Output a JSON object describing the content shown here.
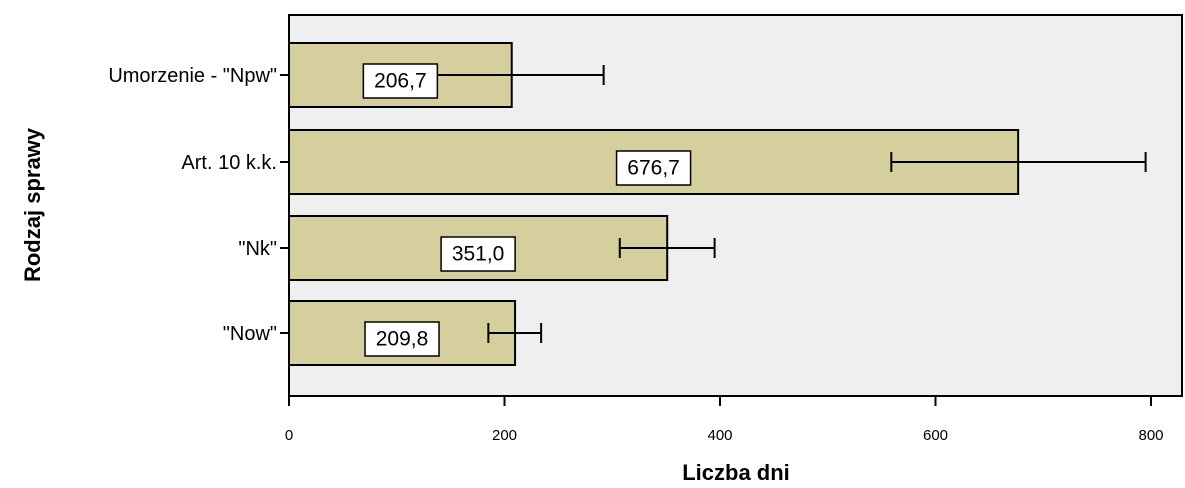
{
  "chart_data": {
    "type": "bar",
    "orientation": "horizontal",
    "categories": [
      "Umorzenie - \"Npw\"",
      "Art. 10 k.k.",
      "\"Nk\"",
      "\"Now\""
    ],
    "values": [
      206.7,
      676.7,
      351.0,
      209.8
    ],
    "value_labels": [
      "206,7",
      "676,7",
      "351,0",
      "209,8"
    ],
    "error_bars": [
      [
        121,
        292
      ],
      [
        559,
        795
      ],
      [
        307,
        395
      ],
      [
        185,
        234
      ]
    ],
    "xlabel": "Liczba dni",
    "ylabel": "Rodzaj sprawy",
    "xlim": [
      0,
      830
    ],
    "xticks": [
      0,
      200,
      400,
      600,
      800
    ],
    "xtick_labels": [
      "0",
      "200",
      "400",
      "600",
      "800"
    ],
    "grid": false,
    "colors": {
      "bar_fill": "#d4cf9d",
      "plot_background": "#efefef",
      "stroke": "#000000",
      "label_box": "#ffffff"
    }
  }
}
